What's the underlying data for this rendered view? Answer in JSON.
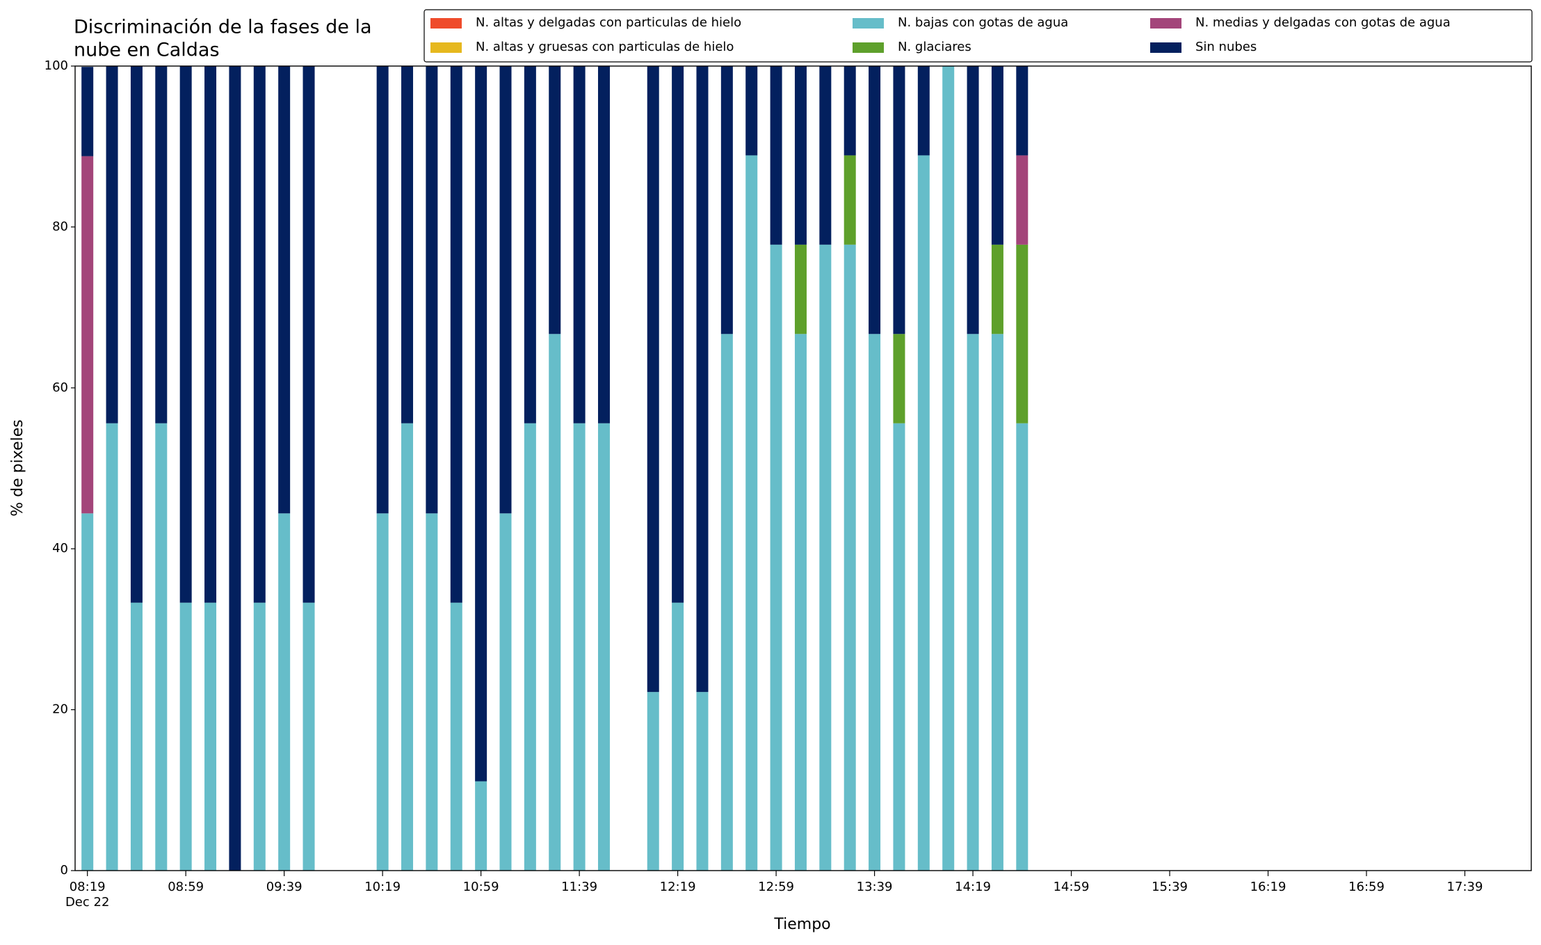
{
  "chart_data": {
    "type": "stacked_bar",
    "title": [
      "Discriminación de la fases de la",
      "nube en Caldas"
    ],
    "xlabel": "Tiempo",
    "ylabel": "% de pixeles",
    "x_date_label": "Dec 22",
    "x": [
      "08:19",
      "08:29",
      "08:39",
      "08:49",
      "08:59",
      "09:09",
      "09:19",
      "09:29",
      "09:39",
      "09:49",
      "10:19",
      "10:29",
      "10:39",
      "10:49",
      "10:59",
      "11:09",
      "11:19",
      "11:29",
      "11:39",
      "11:49",
      "12:09",
      "12:19",
      "12:29",
      "12:39",
      "12:49",
      "12:59",
      "13:09",
      "13:19",
      "13:29",
      "13:39",
      "13:49",
      "13:59",
      "14:09",
      "14:19",
      "14:29",
      "14:39"
    ],
    "series": [
      {
        "name": "N. altas y delgadas con particulas de hielo",
        "color": "#ef4b2b",
        "values": [
          0,
          0,
          0,
          0,
          0,
          0,
          0,
          0,
          0,
          0,
          0,
          0,
          0,
          0,
          0,
          0,
          0,
          0,
          0,
          0,
          0,
          0,
          0,
          0,
          0,
          0,
          0,
          0,
          0,
          0,
          0,
          0,
          0,
          0,
          0,
          0
        ]
      },
      {
        "name": "N. altas y gruesas con particulas de hielo",
        "color": "#e6b81e",
        "values": [
          0,
          0,
          0,
          0,
          0,
          0,
          0,
          0,
          0,
          0,
          0,
          0,
          0,
          0,
          0,
          0,
          0,
          0,
          0,
          0,
          0,
          0,
          0,
          0,
          0,
          0,
          0,
          0,
          0,
          0,
          0,
          0,
          0,
          0,
          0,
          0
        ]
      },
      {
        "name": "N. bajas con gotas de agua",
        "color": "#66bdc9",
        "values": [
          44.4,
          55.6,
          33.3,
          55.6,
          33.3,
          33.3,
          0,
          33.3,
          44.4,
          33.3,
          44.4,
          55.6,
          44.4,
          33.3,
          11.1,
          44.4,
          55.6,
          66.7,
          55.6,
          55.6,
          22.2,
          33.3,
          22.2,
          66.7,
          88.9,
          77.8,
          66.7,
          77.8,
          77.8,
          66.7,
          55.6,
          88.9,
          100,
          66.7,
          66.7,
          55.6
        ]
      },
      {
        "name": "N. glaciares",
        "color": "#5ea02b",
        "values": [
          0,
          0,
          0,
          0,
          0,
          0,
          0,
          0,
          0,
          0,
          0,
          0,
          0,
          0,
          0,
          0,
          0,
          0,
          0,
          0,
          0,
          0,
          0,
          0,
          0,
          0,
          11.1,
          0,
          11.1,
          0,
          11.1,
          0,
          0,
          0,
          11.1,
          22.2
        ]
      },
      {
        "name": "N. medias y delgadas con gotas de agua",
        "color": "#a3457a",
        "values": [
          44.4,
          0,
          0,
          0,
          0,
          0,
          0,
          0,
          0,
          0,
          0,
          0,
          0,
          0,
          0,
          0,
          0,
          0,
          0,
          0,
          0,
          0,
          0,
          0,
          0,
          0,
          0,
          0,
          0,
          0,
          0,
          0,
          0,
          0,
          0,
          11.1
        ]
      },
      {
        "name": "Sin nubes",
        "color": "#03205e",
        "values": [
          11.1,
          44.4,
          66.7,
          44.4,
          66.7,
          66.7,
          100,
          66.7,
          55.6,
          66.7,
          55.6,
          44.4,
          55.6,
          66.7,
          88.9,
          55.6,
          44.4,
          33.3,
          44.4,
          44.4,
          77.8,
          66.7,
          77.8,
          33.3,
          11.1,
          22.2,
          22.2,
          22.2,
          11.1,
          33.3,
          33.3,
          11.1,
          0,
          33.3,
          22.2,
          11.1
        ]
      }
    ],
    "xlim": [
      "08:14",
      "18:06"
    ],
    "xticks": [
      "08:19",
      "08:59",
      "09:39",
      "10:19",
      "10:59",
      "11:39",
      "12:19",
      "12:59",
      "13:39",
      "14:19",
      "14:59",
      "15:39",
      "16:19",
      "16:59",
      "17:39"
    ],
    "ylim": [
      0,
      100
    ],
    "yticks": [
      0,
      20,
      40,
      60,
      80,
      100
    ],
    "legend": "top-right"
  }
}
